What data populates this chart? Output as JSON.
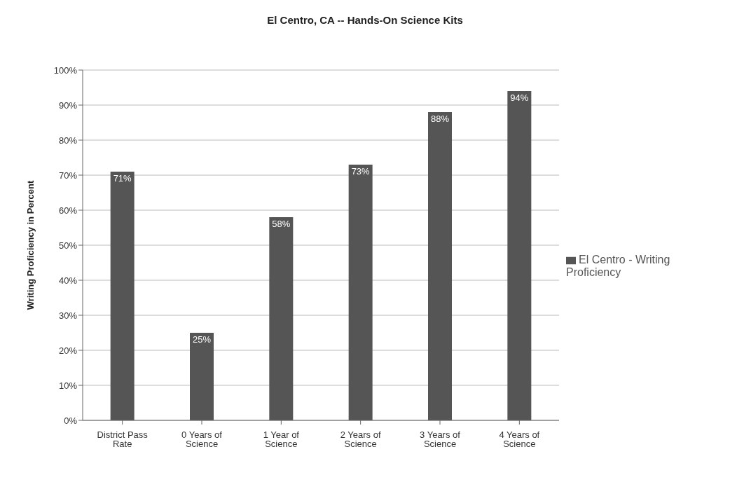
{
  "chart_data": {
    "type": "bar",
    "title": "El Centro, CA -- Hands-On Science Kits",
    "ylabel": "Writing Proficiency in Percent",
    "categories": [
      "District Pass Rate",
      "0 Years of Science",
      "1 Year of Science",
      "2 Years of Science",
      "3 Years of Science",
      "4 Years of Science"
    ],
    "series": [
      {
        "name": "El Centro - Writing Proficiency",
        "color": "#555555",
        "values": [
          71,
          25,
          58,
          73,
          88,
          94
        ],
        "value_labels": [
          "71%",
          "25%",
          "58%",
          "73%",
          "88%",
          "94%"
        ]
      }
    ],
    "ylim": [
      0,
      100
    ],
    "yticks": [
      {
        "value": 0,
        "label": "0%"
      },
      {
        "value": 10,
        "label": "10%"
      },
      {
        "value": 20,
        "label": "20%"
      },
      {
        "value": 30,
        "label": "30%"
      },
      {
        "value": 40,
        "label": "40%"
      },
      {
        "value": 50,
        "label": "50%"
      },
      {
        "value": 60,
        "label": "60%"
      },
      {
        "value": 70,
        "label": "70%"
      },
      {
        "value": 80,
        "label": "80%"
      },
      {
        "value": 90,
        "label": "90%"
      },
      {
        "value": 100,
        "label": "100%"
      }
    ],
    "grid": "y",
    "legend": "right"
  }
}
